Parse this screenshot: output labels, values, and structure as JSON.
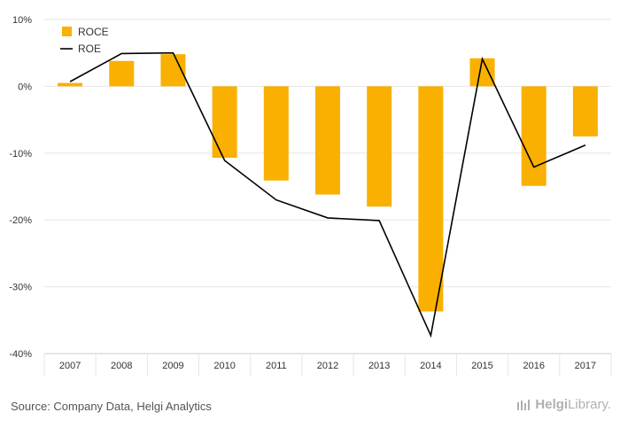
{
  "chart_data": {
    "type": "bar",
    "categories": [
      "2007",
      "2008",
      "2009",
      "2010",
      "2011",
      "2012",
      "2013",
      "2014",
      "2015",
      "2016",
      "2017"
    ],
    "series": [
      {
        "name": "ROCE",
        "type": "bar",
        "color": "#f9b000",
        "values": [
          0.5,
          3.8,
          4.8,
          -10.7,
          -14.1,
          -16.2,
          -18.0,
          -33.7,
          4.2,
          -14.9,
          -7.5
        ]
      },
      {
        "name": "ROE",
        "type": "line",
        "color": "#000000",
        "values": [
          0.7,
          4.9,
          5.0,
          -11.1,
          -17.0,
          -19.7,
          -20.1,
          -37.3,
          4.1,
          -12.1,
          -8.8
        ]
      }
    ],
    "ylim": [
      -40,
      10
    ],
    "yticks": [
      10,
      0,
      -10,
      -20,
      -30,
      -40
    ],
    "ytick_labels": [
      "10%",
      "0%",
      "-10%",
      "-20%",
      "-30%",
      "-40%"
    ],
    "grid": true,
    "legend_position": "top-left"
  },
  "footer": {
    "source": "Source: Company Data, Helgi Analytics",
    "brand_bold": "Helgi",
    "brand_rest": "Library."
  }
}
